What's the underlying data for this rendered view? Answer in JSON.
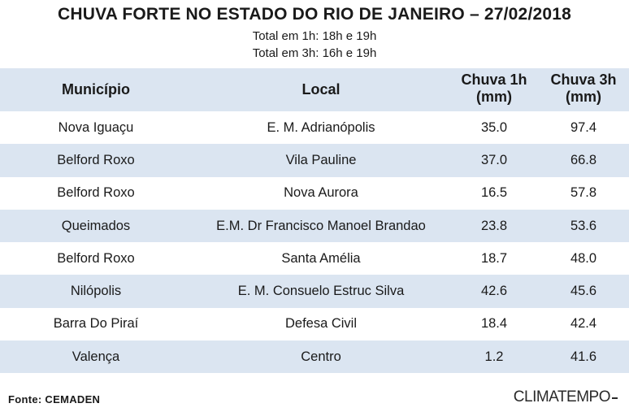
{
  "chart_data": {
    "type": "table",
    "title": "CHUVA FORTE NO ESTADO DO RIO DE JANEIRO – 27/02/2018",
    "subtitle_1h": "Total em 1h: 18h e 19h",
    "subtitle_3h": "Total em 3h: 16h e 19h",
    "columns": {
      "municipio": "Município",
      "local": "Local",
      "chuva_1h_line1": "Chuva 1h",
      "chuva_1h_line2": "(mm)",
      "chuva_3h_line1": "Chuva 3h",
      "chuva_3h_line2": "(mm)"
    },
    "rows": [
      {
        "municipio": "Nova Iguaçu",
        "local": "E. M. Adrianópolis",
        "chuva_1h": "35.0",
        "chuva_3h": "97.4"
      },
      {
        "municipio": "Belford Roxo",
        "local": "Vila Pauline",
        "chuva_1h": "37.0",
        "chuva_3h": "66.8"
      },
      {
        "municipio": "Belford Roxo",
        "local": "Nova Aurora",
        "chuva_1h": "16.5",
        "chuva_3h": "57.8"
      },
      {
        "municipio": "Queimados",
        "local": "E.M. Dr Francisco Manoel Brandao",
        "chuva_1h": "23.8",
        "chuva_3h": "53.6"
      },
      {
        "municipio": "Belford Roxo",
        "local": "Santa Amélia",
        "chuva_1h": "18.7",
        "chuva_3h": "48.0"
      },
      {
        "municipio": "Nilópolis",
        "local": "E. M. Consuelo Estruc Silva",
        "chuva_1h": "42.6",
        "chuva_3h": "45.6"
      },
      {
        "municipio": "Barra Do Piraí",
        "local": "Defesa Civil",
        "chuva_1h": "18.4",
        "chuva_3h": "42.4"
      },
      {
        "municipio": "Valença",
        "local": "Centro",
        "chuva_1h": "1.2",
        "chuva_3h": "41.6"
      }
    ],
    "source": "Fonte: CEMADEN",
    "logo_text": "CLIMATEMPO",
    "colors": {
      "header_bg": "#dbe5f1",
      "stripe_bg": "#dbe5f1",
      "text": "#1a1a1a"
    }
  }
}
